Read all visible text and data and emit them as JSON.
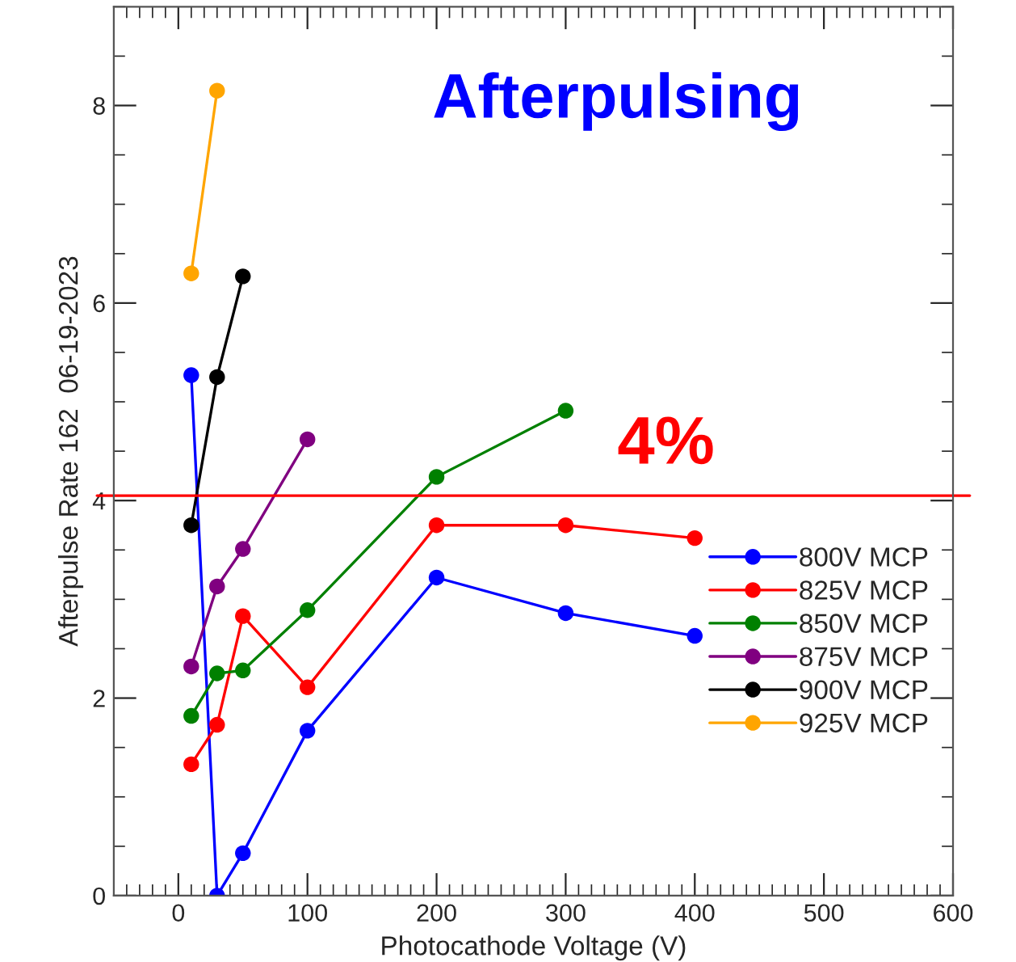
{
  "chart_data": {
    "type": "line",
    "title": "Afterpulsing",
    "xlabel": "Photocathode Voltage (V)",
    "ylabel": "Afterpulse Rate 162  06-19-2023",
    "xlim": [
      -50,
      600
    ],
    "xticks": [
      0,
      100,
      200,
      300,
      400,
      500,
      600
    ],
    "ylim": [
      0,
      9
    ],
    "yticks": [
      0,
      2,
      4,
      6,
      8
    ],
    "marker": "circle",
    "line_style": "solid",
    "legend": "right",
    "grid": false,
    "ref_lines": [
      {
        "axis": "y",
        "value": 4.05,
        "label": "4%",
        "color": "#ff0000"
      }
    ],
    "series": [
      {
        "name": "800V MCP",
        "color": "#0000ff",
        "x": [
          10,
          30,
          50,
          100,
          200,
          300,
          400
        ],
        "values": [
          5.27,
          0,
          0.43,
          1.67,
          3.22,
          2.86,
          2.63
        ]
      },
      {
        "name": "825V MCP",
        "color": "#ff0000",
        "x": [
          10,
          30,
          50,
          100,
          200,
          300,
          400
        ],
        "values": [
          1.33,
          1.73,
          2.83,
          2.11,
          3.75,
          3.75,
          3.62
        ]
      },
      {
        "name": "850V MCP",
        "color": "#008000",
        "x": [
          10,
          30,
          50,
          100,
          200,
          300
        ],
        "values": [
          1.82,
          2.25,
          2.28,
          2.89,
          4.24,
          4.91
        ]
      },
      {
        "name": "875V MCP",
        "color": "#800080",
        "x": [
          10,
          30,
          50,
          100
        ],
        "values": [
          2.32,
          3.13,
          3.51,
          4.62
        ]
      },
      {
        "name": "900V MCP",
        "color": "#000000",
        "x": [
          10,
          30,
          50
        ],
        "values": [
          3.75,
          5.25,
          6.27
        ]
      },
      {
        "name": "925V MCP",
        "color": "#ffa500",
        "x": [
          10,
          30
        ],
        "values": [
          6.3,
          8.15
        ]
      }
    ]
  }
}
